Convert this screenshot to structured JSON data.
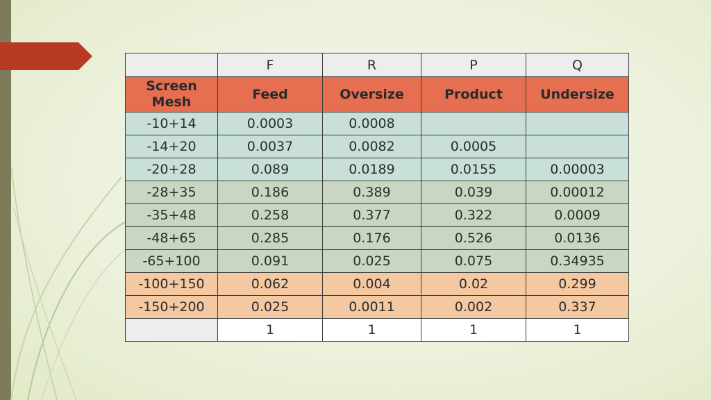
{
  "slide": {
    "accent_colors": {
      "left_bar": "#7e7a5a",
      "arrow_tab": "#b83a22",
      "header_row": "#e76f51",
      "rows_group_1": "#c8e0d9",
      "rows_group_2": "#c9d6c1",
      "rows_group_3": "#f4c8a0"
    }
  },
  "table": {
    "letters": [
      "",
      "F",
      "R",
      "P",
      "Q"
    ],
    "headers": {
      "first_line_1": "Screen",
      "first_line_2": "Mesh",
      "cols": [
        "Feed",
        "Oversize",
        "Product",
        "Undersize"
      ]
    },
    "rows": [
      {
        "mesh": "-10+14",
        "values": [
          "0.0003",
          "0.0008",
          "",
          ""
        ]
      },
      {
        "mesh": "-14+20",
        "values": [
          "0.0037",
          "0.0082",
          "0.0005",
          ""
        ]
      },
      {
        "mesh": "-20+28",
        "values": [
          "0.089",
          "0.0189",
          "0.0155",
          "0.00003"
        ]
      },
      {
        "mesh": "-28+35",
        "values": [
          "0.186",
          "0.389",
          "0.039",
          "0.00012"
        ]
      },
      {
        "mesh": "-35+48",
        "values": [
          "0.258",
          "0.377",
          "0.322",
          "0.0009"
        ]
      },
      {
        "mesh": "-48+65",
        "values": [
          "0.285",
          "0.176",
          "0.526",
          "0.0136"
        ]
      },
      {
        "mesh": "-65+100",
        "values": [
          "0.091",
          "0.025",
          "0.075",
          "0.34935"
        ]
      },
      {
        "mesh": "-100+150",
        "values": [
          "0.062",
          "0.004",
          "0.02",
          "0.299"
        ]
      },
      {
        "mesh": "-150+200",
        "values": [
          "0.025",
          "0.0011",
          "0.002",
          "0.337"
        ]
      }
    ],
    "totals": [
      "",
      "1",
      "1",
      "1",
      "1"
    ]
  }
}
